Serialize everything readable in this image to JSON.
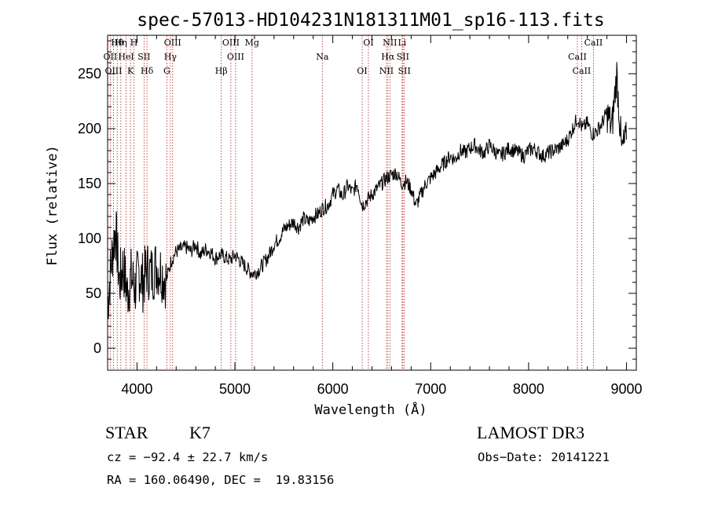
{
  "chart_data": {
    "type": "line",
    "title": "spec-57013-HD104231N181311M01_sp16-113.fits",
    "xlabel": "Wavelength (Å)",
    "ylabel": "Flux (relative)",
    "xlim": [
      3700,
      9100
    ],
    "ylim": [
      -20,
      285
    ],
    "xticks": [
      4000,
      5000,
      6000,
      7000,
      8000,
      9000
    ],
    "yticks": [
      0,
      50,
      100,
      150,
      200,
      250
    ],
    "series": [
      {
        "name": "flux",
        "x": [
          3700,
          3740,
          3780,
          3820,
          3860,
          3900,
          3940,
          3980,
          4020,
          4060,
          4100,
          4150,
          4200,
          4250,
          4300,
          4350,
          4400,
          4450,
          4500,
          4550,
          4600,
          4650,
          4700,
          4750,
          4800,
          4850,
          4900,
          4950,
          5000,
          5050,
          5100,
          5150,
          5200,
          5250,
          5300,
          5350,
          5400,
          5450,
          5500,
          5550,
          5600,
          5650,
          5700,
          5750,
          5800,
          5850,
          5900,
          5950,
          6000,
          6050,
          6100,
          6150,
          6200,
          6250,
          6300,
          6350,
          6400,
          6450,
          6500,
          6550,
          6600,
          6650,
          6700,
          6750,
          6800,
          6850,
          6900,
          6950,
          7000,
          7050,
          7100,
          7150,
          7200,
          7250,
          7300,
          7350,
          7400,
          7450,
          7500,
          7550,
          7600,
          7650,
          7700,
          7750,
          7800,
          7850,
          7900,
          7950,
          8000,
          8050,
          8100,
          8150,
          8200,
          8250,
          8300,
          8350,
          8400,
          8450,
          8500,
          8550,
          8600,
          8650,
          8700,
          8750,
          8800,
          8850,
          8900,
          8950,
          9000
        ],
        "values": [
          40,
          80,
          110,
          60,
          75,
          50,
          65,
          55,
          70,
          60,
          72,
          68,
          75,
          70,
          62,
          80,
          88,
          90,
          92,
          88,
          95,
          85,
          90,
          88,
          82,
          85,
          83,
          80,
          85,
          80,
          75,
          70,
          68,
          72,
          78,
          85,
          95,
          100,
          108,
          112,
          115,
          110,
          118,
          115,
          120,
          122,
          128,
          130,
          140,
          145,
          138,
          148,
          142,
          150,
          130,
          135,
          140,
          145,
          150,
          155,
          158,
          160,
          150,
          152,
          145,
          130,
          140,
          150,
          155,
          160,
          165,
          170,
          175,
          172,
          180,
          178,
          182,
          185,
          180,
          178,
          185,
          180,
          175,
          178,
          182,
          180,
          178,
          175,
          180,
          182,
          178,
          175,
          178,
          180,
          182,
          185,
          190,
          200,
          210,
          200,
          205,
          195,
          198,
          205,
          215,
          200,
          250,
          180,
          190
        ]
      }
    ],
    "lines": [
      {
        "name": "Hθ",
        "wave": 3798
      },
      {
        "name": "OII",
        "wave": 3727
      },
      {
        "name": "OIII",
        "wave": 3760
      },
      {
        "name": "Hη",
        "wave": 3835
      },
      {
        "name": "HeI",
        "wave": 3889
      },
      {
        "name": "K",
        "wave": 3934
      },
      {
        "name": "H",
        "wave": 3969
      },
      {
        "name": "SII",
        "wave": 4072
      },
      {
        "name": "Hδ",
        "wave": 4102
      },
      {
        "name": "OIII",
        "wave": 4364
      },
      {
        "name": "Hγ",
        "wave": 4341
      },
      {
        "name": "G",
        "wave": 4305
      },
      {
        "name": "OIII",
        "wave": 4959
      },
      {
        "name": "OIII",
        "wave": 5007
      },
      {
        "name": "Hβ",
        "wave": 4861
      },
      {
        "name": "Mg",
        "wave": 5175
      },
      {
        "name": "Na",
        "wave": 5893
      },
      {
        "name": "OI",
        "wave": 6300
      },
      {
        "name": "OI",
        "wave": 6364
      },
      {
        "name": "Hα",
        "wave": 6563
      },
      {
        "name": "NII",
        "wave": 6548
      },
      {
        "name": "NII",
        "wave": 6583
      },
      {
        "name": "SII",
        "wave": 6716
      },
      {
        "name": "SII",
        "wave": 6731
      },
      {
        "name": "Li",
        "wave": 6708
      },
      {
        "name": "CaII",
        "wave": 8498
      },
      {
        "name": "CaII",
        "wave": 8542
      },
      {
        "name": "CaII",
        "wave": 8662
      }
    ]
  },
  "info": {
    "object_type": "STAR",
    "subclass": "K7",
    "survey": "LAMOST DR3",
    "cz_text": "cz = −92.4 ± 22.7 km/s",
    "obs_date_text": "Obs−Date: 20141221",
    "radec_text": "RA = 160.06490, DEC =  19.83156"
  },
  "colors": {
    "spectrum": "#000000",
    "line_marker": "#b22222",
    "axes": "#000000"
  }
}
